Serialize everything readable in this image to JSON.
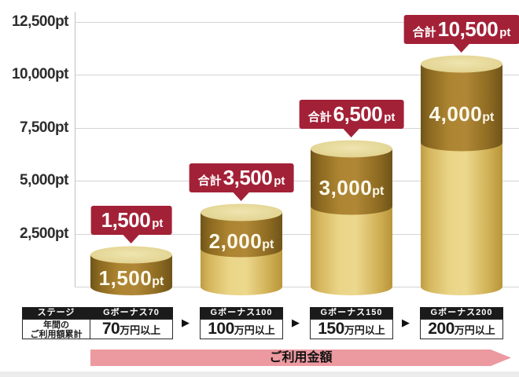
{
  "colors": {
    "bubble_red": "#A32137",
    "gold_dark": "#A57E2C",
    "gold_light": "#E8D384",
    "gold_top_face": "#E7DA9E",
    "pink_arrow": "#EC99A0",
    "gridline_gray": "#D4D4D4",
    "text_dark": "#222222"
  },
  "chart_data": {
    "type": "bar",
    "variant": "stacked-cylinder-cumulative",
    "unit": "pt",
    "ylim": [
      0,
      13150
    ],
    "grid": true,
    "legend_position": "bottom-left",
    "y_ticks": [
      {
        "value": 12500,
        "label": "12,500pt"
      },
      {
        "value": 10000,
        "label": "10,000pt"
      },
      {
        "value": 7500,
        "label": "7,500pt"
      },
      {
        "value": 5000,
        "label": "5,000pt"
      },
      {
        "value": 2500,
        "label": "2,500pt"
      }
    ],
    "step_arrow_glyph": "▶",
    "x_arrow_label": "ご利用金額",
    "legend": {
      "header": "ステージ",
      "body_lines": [
        "年間の",
        "ご利用額累計"
      ]
    },
    "bars": [
      {
        "category": "Gボーナス70",
        "threshold_value": "70",
        "threshold_suffix": "万円以上",
        "carryover": 0,
        "bonus": 1500,
        "total": 1500,
        "segment_label": "1,500",
        "segment_unit": "pt",
        "bubble_prefix": "",
        "bubble_value": "1,500",
        "bubble_unit": "pt"
      },
      {
        "category": "Gボーナス100",
        "threshold_value": "100",
        "threshold_suffix": "万円以上",
        "carryover": 1500,
        "bonus": 2000,
        "total": 3500,
        "segment_label": "2,000",
        "segment_unit": "pt",
        "bubble_prefix": "合計",
        "bubble_value": "3,500",
        "bubble_unit": "pt"
      },
      {
        "category": "Gボーナス150",
        "threshold_value": "150",
        "threshold_suffix": "万円以上",
        "carryover": 3500,
        "bonus": 3000,
        "total": 6500,
        "segment_label": "3,000",
        "segment_unit": "pt",
        "bubble_prefix": "合計",
        "bubble_value": "6,500",
        "bubble_unit": "pt"
      },
      {
        "category": "Gボーナス200",
        "threshold_value": "200",
        "threshold_suffix": "万円以上",
        "carryover": 6500,
        "bonus": 4000,
        "total": 10500,
        "segment_label": "4,000",
        "segment_unit": "pt",
        "bubble_prefix": "合計",
        "bubble_value": "10,500",
        "bubble_unit": "pt"
      }
    ]
  }
}
